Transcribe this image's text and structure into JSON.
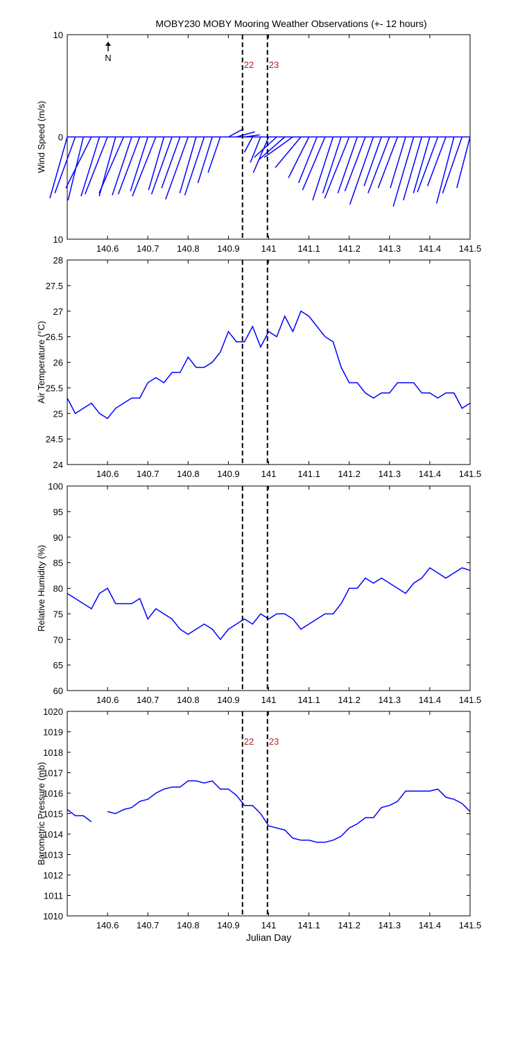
{
  "chart_data": [
    {
      "type": "stick",
      "title": "MOBY230 MOBY Mooring Weather Observations (+- 12 hours)",
      "ylabel": "Wind Speed (m/s)",
      "north_label": "N",
      "color": "#0000ff",
      "x": [
        140.5,
        140.52,
        140.54,
        140.56,
        140.58,
        140.6,
        140.62,
        140.64,
        140.66,
        140.68,
        140.7,
        140.72,
        140.74,
        140.76,
        140.78,
        140.8,
        140.82,
        140.84,
        140.86,
        140.88,
        140.9,
        140.92,
        140.94,
        140.96,
        140.98,
        141.0,
        141.02,
        141.04,
        141.06,
        141.08,
        141.1,
        141.12,
        141.14,
        141.16,
        141.18,
        141.2,
        141.22,
        141.24,
        141.26,
        141.28,
        141.3,
        141.32,
        141.34,
        141.36,
        141.38,
        141.4,
        141.42,
        141.44,
        141.46,
        141.48,
        141.5
      ],
      "u": [
        -1.7,
        -2.0,
        -1.5,
        -2.5,
        -1.8,
        -2.2,
        -1.6,
        -2.4,
        -1.9,
        -2.1,
        -1.7,
        -2.3,
        -1.5,
        -2.0,
        -1.8,
        -2.2,
        -1.6,
        -1.9,
        -1.4,
        -1.2,
        1.5,
        1.8,
        1.5,
        -0.8,
        -1.0,
        -1.5,
        -2.2,
        -2.5,
        -2.8,
        -2.5,
        -2.0,
        -1.8,
        -2.2,
        -2.0,
        -1.8,
        -2.4,
        -1.9,
        -2.0,
        -2.3,
        -1.7,
        -2.1,
        -1.9,
        -1.5,
        -2.0,
        -1.8,
        -1.6,
        -2.0,
        -1.8,
        -1.7,
        -1.9,
        -1.3
      ],
      "v": [
        -6.0,
        -5.5,
        -6.2,
        -5.0,
        -5.8,
        -5.6,
        -5.8,
        -5.5,
        -5.7,
        -5.6,
        -5.3,
        -5.8,
        -5.2,
        -5.6,
        -5.0,
        -6.1,
        -5.5,
        -5.7,
        -4.5,
        -3.5,
        0.8,
        0.5,
        0.2,
        -1.5,
        -2.5,
        -3.5,
        -2.0,
        -2.2,
        -2.0,
        -3.0,
        -4.0,
        -4.5,
        -5.2,
        -6.2,
        -5.5,
        -6.0,
        -5.5,
        -5.3,
        -6.6,
        -4.8,
        -5.5,
        -5.0,
        -5.0,
        -6.8,
        -6.2,
        -5.5,
        -5.4,
        -4.8,
        -6.5,
        -5.5,
        -5.0
      ],
      "xlim": [
        140.5,
        141.5
      ],
      "xticks": [
        140.6,
        140.7,
        140.8,
        140.9,
        141,
        141.1,
        141.2,
        141.3,
        141.4,
        141.5
      ],
      "ylim": [
        -10,
        10
      ],
      "yticks": [
        {
          "value": -10,
          "label": "10"
        },
        0,
        10
      ],
      "vlines": [
        140.935,
        140.997
      ],
      "annotations": [
        "22",
        "23"
      ],
      "annotation_color": "#b22222"
    },
    {
      "type": "line",
      "ylabel": "Air Temperature (°C)",
      "color": "#0000ff",
      "x": [
        140.5,
        140.52,
        140.54,
        140.56,
        140.58,
        140.6,
        140.62,
        140.64,
        140.66,
        140.68,
        140.7,
        140.72,
        140.74,
        140.76,
        140.78,
        140.8,
        140.82,
        140.84,
        140.86,
        140.88,
        140.9,
        140.92,
        140.94,
        140.96,
        140.98,
        141.0,
        141.02,
        141.04,
        141.06,
        141.08,
        141.1,
        141.12,
        141.14,
        141.16,
        141.18,
        141.2,
        141.22,
        141.24,
        141.26,
        141.28,
        141.3,
        141.32,
        141.34,
        141.36,
        141.38,
        141.4,
        141.42,
        141.44,
        141.46,
        141.48,
        141.5
      ],
      "values": [
        25.3,
        25.0,
        25.1,
        25.2,
        25.0,
        24.9,
        25.1,
        25.2,
        25.3,
        25.3,
        25.6,
        25.7,
        25.6,
        25.8,
        25.8,
        26.1,
        25.9,
        25.9,
        26.0,
        26.2,
        26.6,
        26.4,
        26.4,
        26.7,
        26.3,
        26.6,
        26.5,
        26.9,
        26.6,
        27.0,
        26.9,
        26.7,
        26.5,
        26.4,
        25.9,
        25.6,
        25.6,
        25.4,
        25.3,
        25.4,
        25.4,
        25.6,
        25.6,
        25.6,
        25.4,
        25.4,
        25.3,
        25.4,
        25.4,
        25.1,
        25.2
      ],
      "xlim": [
        140.5,
        141.5
      ],
      "xticks": [
        140.6,
        140.7,
        140.8,
        140.9,
        141,
        141.1,
        141.2,
        141.3,
        141.4,
        141.5
      ],
      "ylim": [
        24,
        28
      ],
      "yticks": [
        24,
        24.5,
        25,
        25.5,
        26,
        26.5,
        27,
        27.5,
        28
      ],
      "vlines": [
        140.935,
        140.997
      ]
    },
    {
      "type": "line",
      "ylabel": "Relative Humidity (%)",
      "color": "#0000ff",
      "x": [
        140.5,
        140.52,
        140.54,
        140.56,
        140.58,
        140.6,
        140.62,
        140.64,
        140.66,
        140.68,
        140.7,
        140.72,
        140.74,
        140.76,
        140.78,
        140.8,
        140.82,
        140.84,
        140.86,
        140.88,
        140.9,
        140.92,
        140.94,
        140.96,
        140.98,
        141.0,
        141.02,
        141.04,
        141.06,
        141.08,
        141.1,
        141.12,
        141.14,
        141.16,
        141.18,
        141.2,
        141.22,
        141.24,
        141.26,
        141.28,
        141.3,
        141.32,
        141.34,
        141.36,
        141.38,
        141.4,
        141.42,
        141.44,
        141.46,
        141.48,
        141.5
      ],
      "values": [
        79,
        78,
        77,
        76,
        79,
        80,
        77,
        77,
        77,
        78,
        74,
        76,
        75,
        74,
        72,
        71,
        72,
        73,
        72,
        70,
        72,
        73,
        74,
        73,
        75,
        74,
        75,
        75,
        74,
        72,
        73,
        74,
        75,
        75,
        77,
        80,
        80,
        82,
        81,
        82,
        81,
        80,
        79,
        81,
        82,
        84,
        83,
        82,
        83,
        84,
        83.5
      ],
      "xlim": [
        140.5,
        141.5
      ],
      "xticks": [
        140.6,
        140.7,
        140.8,
        140.9,
        141,
        141.1,
        141.2,
        141.3,
        141.4,
        141.5
      ],
      "ylim": [
        60,
        100
      ],
      "yticks": [
        60,
        65,
        70,
        75,
        80,
        85,
        90,
        95,
        100
      ],
      "vlines": [
        140.935,
        140.997
      ]
    },
    {
      "type": "line",
      "ylabel": "Barometric Pressure (mb)",
      "xlabel": "Julian Day",
      "color": "#0000ff",
      "x": [
        140.5,
        140.52,
        140.54,
        140.56,
        140.58,
        140.6,
        140.62,
        140.64,
        140.66,
        140.68,
        140.7,
        140.72,
        140.74,
        140.76,
        140.78,
        140.8,
        140.82,
        140.84,
        140.86,
        140.88,
        140.9,
        140.92,
        140.94,
        140.96,
        140.98,
        141.0,
        141.02,
        141.04,
        141.06,
        141.08,
        141.1,
        141.12,
        141.14,
        141.16,
        141.18,
        141.2,
        141.22,
        141.24,
        141.26,
        141.28,
        141.3,
        141.32,
        141.34,
        141.36,
        141.38,
        141.4,
        141.42,
        141.44,
        141.46,
        141.48,
        141.5
      ],
      "values": [
        1015.2,
        1014.9,
        1014.9,
        1014.6,
        null,
        1015.1,
        1015.0,
        1015.2,
        1015.3,
        1015.6,
        1015.7,
        1016.0,
        1016.2,
        1016.3,
        1016.3,
        1016.6,
        1016.6,
        1016.5,
        1016.6,
        1016.2,
        1016.2,
        1015.9,
        1015.4,
        1015.4,
        1015.0,
        1014.4,
        1014.3,
        1014.2,
        1013.8,
        1013.7,
        1013.7,
        1013.6,
        1013.6,
        1013.7,
        1013.9,
        1014.3,
        1014.5,
        1014.8,
        1014.8,
        1015.3,
        1015.4,
        1015.6,
        1016.1,
        1016.1,
        1016.1,
        1016.1,
        1016.2,
        1015.8,
        1015.7,
        1015.5,
        1015.1
      ],
      "xlim": [
        140.5,
        141.5
      ],
      "xticks": [
        140.6,
        140.7,
        140.8,
        140.9,
        141,
        141.1,
        141.2,
        141.3,
        141.4,
        141.5
      ],
      "ylim": [
        1010,
        1020
      ],
      "yticks": [
        1010,
        1011,
        1012,
        1013,
        1014,
        1015,
        1016,
        1017,
        1018,
        1019,
        1020
      ],
      "vlines": [
        140.935,
        140.997
      ],
      "annotations": [
        "22",
        "23"
      ],
      "annotation_color": "#b22222"
    }
  ]
}
